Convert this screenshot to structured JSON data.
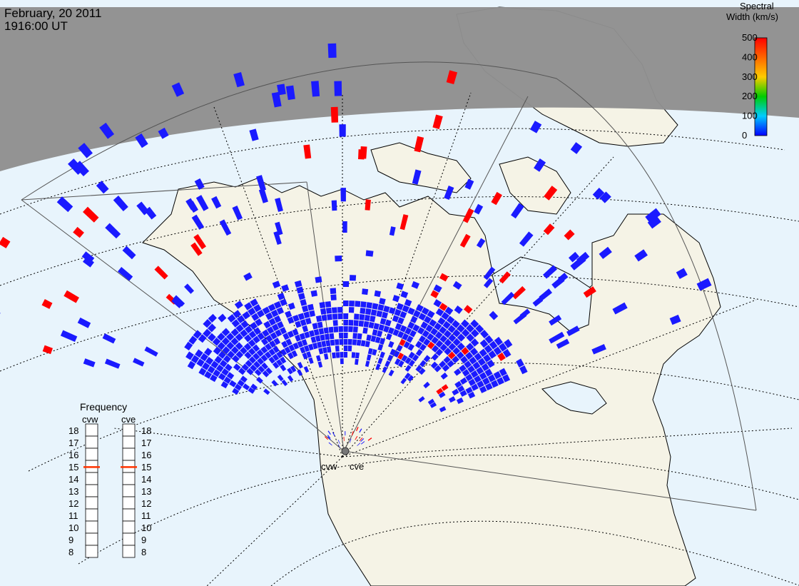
{
  "header": {
    "date": "February, 20 2011",
    "time": "1916:00 UT"
  },
  "colorbar": {
    "title_line1": "Spectral",
    "title_line2": "Width (km/s)",
    "ticks": [
      "500",
      "400",
      "300",
      "200",
      "100",
      "0"
    ],
    "colors": [
      "#ff0000",
      "#ff6600",
      "#ffcc00",
      "#00cc00",
      "#00ccff",
      "#0000ff"
    ]
  },
  "frequency": {
    "title": "Frequency",
    "cvw_label": "cvw",
    "cve_label": "cve",
    "scale": [
      "18",
      "17",
      "16",
      "15",
      "14",
      "13",
      "12",
      "11",
      "10",
      "9",
      "8"
    ],
    "cvw_value": 15,
    "cve_value": 15,
    "marker_color": "#ff3300"
  },
  "stations": {
    "cvw": "cvw",
    "cve": "cve"
  },
  "colors": {
    "ocean": "#e8f4fc",
    "land": "#f5f3e6",
    "night": "#8f8f8f",
    "echo_low": "#1a1aff",
    "echo_high": "#ff0000"
  }
}
